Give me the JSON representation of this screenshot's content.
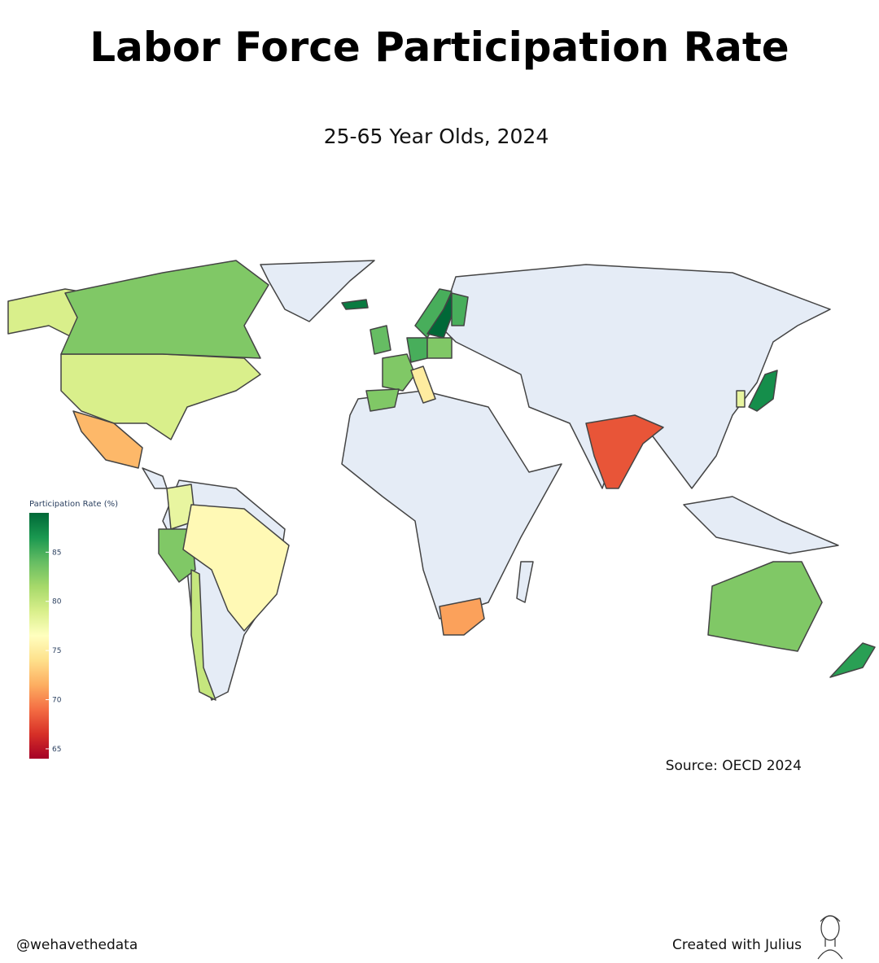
{
  "chart_data": {
    "type": "choropleth",
    "title": "Labor Force Participation Rate",
    "subtitle": "25-65 Year Olds, 2024",
    "colorbar_title": "Participation Rate (%)",
    "source": "Source: OECD 2024",
    "values": [
      79,
      83,
      72,
      78,
      83,
      76,
      80,
      71,
      68,
      87,
      78,
      83,
      86,
      88,
      85,
      89,
      85,
      84,
      83,
      83,
      85,
      83,
      75
    ],
    "zlim": [
      64,
      89
    ],
    "zticks": [
      65,
      70,
      75,
      80,
      85
    ],
    "colorscale": [
      "#a50026",
      "#d73027",
      "#f46d43",
      "#fdae61",
      "#fee08b",
      "#ffffbf",
      "#d9ef8b",
      "#a6d96a",
      "#66bd63",
      "#1a9850",
      "#006837"
    ],
    "no_data_color": "#e5ecf6"
  },
  "footer": {
    "handle": "@wehavethedata",
    "credit": "Created with Julius"
  }
}
